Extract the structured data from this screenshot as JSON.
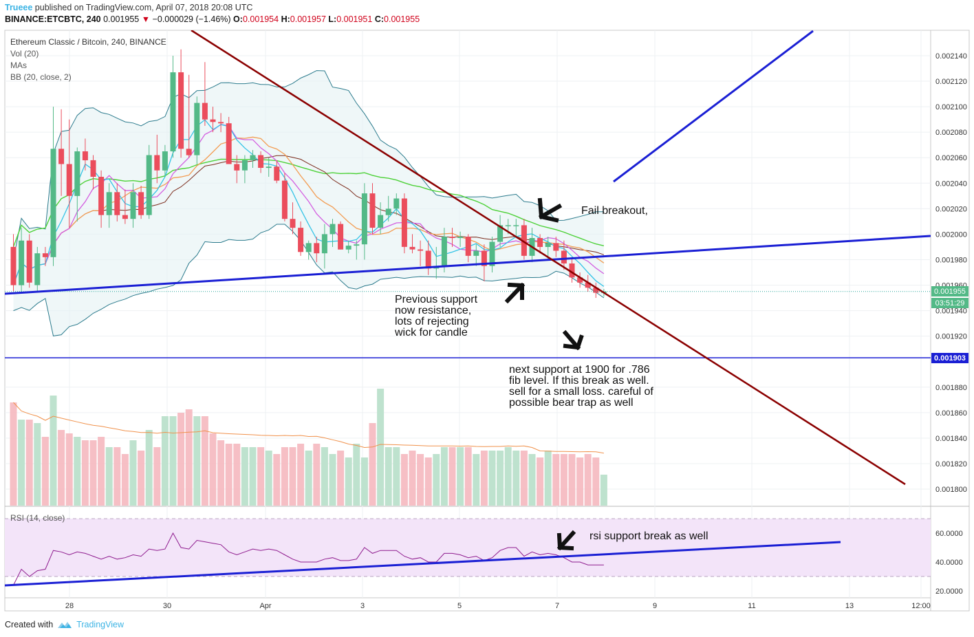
{
  "header": {
    "author": "Trueee",
    "published_text": " published on TradingView.com, April 07, 2018 20:08 UTC",
    "symbol": "BINANCE:ETCBTC, 240",
    "last": "0.001955",
    "change": "−0.000029 (−1.46%)",
    "o_label": "O:",
    "o_value": "0.001954",
    "h_label": "H:",
    "h_value": "0.001957",
    "l_label": "L:",
    "l_value": "0.001951",
    "c_label": "C:",
    "c_value": "0.001955"
  },
  "legend": {
    "pair": "Ethereum Classic / Bitcoin, 240, BINANCE",
    "vol": "Vol (20)",
    "mas": "MAs",
    "bb": "BB (20, close, 2)",
    "rsi": "RSI (14, close)"
  },
  "price_axis": [
    "0.002140",
    "0.002120",
    "0.002100",
    "0.002080",
    "0.002060",
    "0.002040",
    "0.002020",
    "0.002000",
    "0.001980",
    "0.001960",
    "0.001940",
    "0.001920",
    "0.001880",
    "0.001860",
    "0.001840",
    "0.001820",
    "0.001800"
  ],
  "price_labels": {
    "current": "0.001955",
    "countdown": "03:51:29",
    "level": "0.001903"
  },
  "rsi_axis": [
    "60.0000",
    "40.0000",
    "20.0000"
  ],
  "time_axis": [
    "28",
    "30",
    "Apr",
    "3",
    "5",
    "7",
    "9",
    "11",
    "13",
    "12:00"
  ],
  "annotations": {
    "fail": "Fail breakout,",
    "prev_support": [
      "Previous support",
      "now resistance,",
      "lots of rejecting",
      "wick for candle"
    ],
    "next_support": [
      "next support at 1900 for .786",
      "fib level. If this break as well.",
      "sell for a small loss. careful of",
      "possible bear trap as well"
    ],
    "rsi": "rsi support break as well"
  },
  "footer": {
    "created": "Created with",
    "brand": "TradingView"
  },
  "colors": {
    "up": "#53b987",
    "down": "#eb4d5c",
    "trend_blue": "#1a1fd4",
    "trend_red": "#8b0000",
    "bb": "#2a7a8c",
    "accent": "#3bb3e4"
  },
  "chart_data": {
    "type": "candlestick",
    "symbol": "ETCBTC",
    "interval": "240",
    "ylim": [
      0.00179,
      0.00215
    ],
    "candles": [
      {
        "o": 0.00199,
        "h": 0.002,
        "l": 0.001955,
        "c": 0.00196
      },
      {
        "o": 0.00196,
        "h": 0.002005,
        "l": 0.001955,
        "c": 0.001995
      },
      {
        "o": 0.001995,
        "h": 0.002,
        "l": 0.001958,
        "c": 0.001962
      },
      {
        "o": 0.00196,
        "h": 0.00199,
        "l": 0.001955,
        "c": 0.001985
      },
      {
        "o": 0.001985,
        "h": 0.00199,
        "l": 0.001975,
        "c": 0.001982
      },
      {
        "o": 0.001982,
        "h": 0.0021,
        "l": 0.001975,
        "c": 0.002067
      },
      {
        "o": 0.002067,
        "h": 0.002098,
        "l": 0.00203,
        "c": 0.002055
      },
      {
        "o": 0.002055,
        "h": 0.00209,
        "l": 0.002005,
        "c": 0.00203
      },
      {
        "o": 0.00203,
        "h": 0.002068,
        "l": 0.00201,
        "c": 0.002065
      },
      {
        "o": 0.002065,
        "h": 0.002075,
        "l": 0.00205,
        "c": 0.002058
      },
      {
        "o": 0.002058,
        "h": 0.002062,
        "l": 0.002035,
        "c": 0.002045
      },
      {
        "o": 0.002045,
        "h": 0.00205,
        "l": 0.002005,
        "c": 0.002015
      },
      {
        "o": 0.002015,
        "h": 0.00204,
        "l": 0.002005,
        "c": 0.002033
      },
      {
        "o": 0.002033,
        "h": 0.00204,
        "l": 0.00201,
        "c": 0.002015
      },
      {
        "o": 0.002015,
        "h": 0.002035,
        "l": 0.002008,
        "c": 0.002012
      },
      {
        "o": 0.002012,
        "h": 0.00204,
        "l": 0.002005,
        "c": 0.002033
      },
      {
        "o": 0.002033,
        "h": 0.002038,
        "l": 0.002012,
        "c": 0.002015
      },
      {
        "o": 0.002015,
        "h": 0.00207,
        "l": 0.002012,
        "c": 0.002062
      },
      {
        "o": 0.002062,
        "h": 0.002078,
        "l": 0.00204,
        "c": 0.00205
      },
      {
        "o": 0.00205,
        "h": 0.00207,
        "l": 0.002045,
        "c": 0.002065
      },
      {
        "o": 0.002065,
        "h": 0.00214,
        "l": 0.00206,
        "c": 0.002127
      },
      {
        "o": 0.002127,
        "h": 0.002145,
        "l": 0.00206,
        "c": 0.002067
      },
      {
        "o": 0.002067,
        "h": 0.002125,
        "l": 0.00206,
        "c": 0.002062
      },
      {
        "o": 0.002062,
        "h": 0.002108,
        "l": 0.002055,
        "c": 0.002103
      },
      {
        "o": 0.002103,
        "h": 0.002135,
        "l": 0.002085,
        "c": 0.00209
      },
      {
        "o": 0.00209,
        "h": 0.0021,
        "l": 0.00208,
        "c": 0.002088
      },
      {
        "o": 0.002088,
        "h": 0.002095,
        "l": 0.00208,
        "c": 0.002087
      },
      {
        "o": 0.002087,
        "h": 0.002092,
        "l": 0.002055,
        "c": 0.002055
      },
      {
        "o": 0.002055,
        "h": 0.002062,
        "l": 0.00204,
        "c": 0.00205
      },
      {
        "o": 0.00205,
        "h": 0.002062,
        "l": 0.00204,
        "c": 0.002058
      },
      {
        "o": 0.002058,
        "h": 0.002066,
        "l": 0.002052,
        "c": 0.002062
      },
      {
        "o": 0.002062,
        "h": 0.002065,
        "l": 0.002048,
        "c": 0.002052
      },
      {
        "o": 0.002052,
        "h": 0.00206,
        "l": 0.002045,
        "c": 0.002053
      },
      {
        "o": 0.002053,
        "h": 0.002058,
        "l": 0.00204,
        "c": 0.002042
      },
      {
        "o": 0.002042,
        "h": 0.002048,
        "l": 0.00201,
        "c": 0.002012
      },
      {
        "o": 0.002012,
        "h": 0.002025,
        "l": 0.002,
        "c": 0.002005
      },
      {
        "o": 0.002005,
        "h": 0.00201,
        "l": 0.001983,
        "c": 0.001986
      },
      {
        "o": 0.001986,
        "h": 0.001995,
        "l": 0.00198,
        "c": 0.001993
      },
      {
        "o": 0.001993,
        "h": 0.001998,
        "l": 0.001978,
        "c": 0.001985
      },
      {
        "o": 0.001985,
        "h": 0.002008,
        "l": 0.001973,
        "c": 0.002
      },
      {
        "o": 0.002,
        "h": 0.002012,
        "l": 0.00199,
        "c": 0.002008
      },
      {
        "o": 0.002008,
        "h": 0.00201,
        "l": 0.001988,
        "c": 0.001988
      },
      {
        "o": 0.001988,
        "h": 0.001995,
        "l": 0.001985,
        "c": 0.001991
      },
      {
        "o": 0.001991,
        "h": 0.001995,
        "l": 0.00198,
        "c": 0.001992
      },
      {
        "o": 0.001992,
        "h": 0.00204,
        "l": 0.00198,
        "c": 0.002032
      },
      {
        "o": 0.002032,
        "h": 0.00204,
        "l": 0.002,
        "c": 0.002005
      },
      {
        "o": 0.002005,
        "h": 0.002025,
        "l": 0.002,
        "c": 0.002015
      },
      {
        "o": 0.002015,
        "h": 0.00203,
        "l": 0.00201,
        "c": 0.00202
      },
      {
        "o": 0.00202,
        "h": 0.002032,
        "l": 0.002015,
        "c": 0.002028
      },
      {
        "o": 0.002028,
        "h": 0.002032,
        "l": 0.001985,
        "c": 0.00199
      },
      {
        "o": 0.00199,
        "h": 0.002,
        "l": 0.001985,
        "c": 0.001988
      },
      {
        "o": 0.001988,
        "h": 0.001995,
        "l": 0.001975,
        "c": 0.001987
      },
      {
        "o": 0.001987,
        "h": 0.001995,
        "l": 0.001968,
        "c": 0.001973
      },
      {
        "o": 0.001973,
        "h": 0.00199,
        "l": 0.001965,
        "c": 0.001975
      },
      {
        "o": 0.001975,
        "h": 0.002005,
        "l": 0.00197,
        "c": 0.001998
      },
      {
        "o": 0.001998,
        "h": 0.002005,
        "l": 0.00199,
        "c": 0.001997
      },
      {
        "o": 0.001997,
        "h": 0.002002,
        "l": 0.00199,
        "c": 0.001998
      },
      {
        "o": 0.001998,
        "h": 0.002,
        "l": 0.001978,
        "c": 0.001983
      },
      {
        "o": 0.001983,
        "h": 0.001992,
        "l": 0.001975,
        "c": 0.001987
      },
      {
        "o": 0.001987,
        "h": 0.001992,
        "l": 0.001963,
        "c": 0.001975
      },
      {
        "o": 0.001975,
        "h": 0.001998,
        "l": 0.00197,
        "c": 0.001994
      },
      {
        "o": 0.001994,
        "h": 0.002015,
        "l": 0.00199,
        "c": 0.002007
      },
      {
        "o": 0.002007,
        "h": 0.002012,
        "l": 0.002,
        "c": 0.002007
      },
      {
        "o": 0.002007,
        "h": 0.002012,
        "l": 0.001998,
        "c": 0.002007
      },
      {
        "o": 0.002007,
        "h": 0.002012,
        "l": 0.00198,
        "c": 0.001983
      },
      {
        "o": 0.001983,
        "h": 0.002005,
        "l": 0.001978,
        "c": 0.001997
      },
      {
        "o": 0.001997,
        "h": 0.002,
        "l": 0.001985,
        "c": 0.00199
      },
      {
        "o": 0.00199,
        "h": 0.001998,
        "l": 0.00198,
        "c": 0.001993
      },
      {
        "o": 0.001993,
        "h": 0.001998,
        "l": 0.001982,
        "c": 0.001987
      },
      {
        "o": 0.001987,
        "h": 0.001995,
        "l": 0.001972,
        "c": 0.001977
      },
      {
        "o": 0.001977,
        "h": 0.001982,
        "l": 0.001962,
        "c": 0.001966
      },
      {
        "o": 0.001966,
        "h": 0.00197,
        "l": 0.001958,
        "c": 0.001962
      },
      {
        "o": 0.001962,
        "h": 0.001968,
        "l": 0.001955,
        "c": 0.001958
      },
      {
        "o": 0.001958,
        "h": 0.001962,
        "l": 0.00195,
        "c": 0.001954
      },
      {
        "o": 0.001954,
        "h": 0.001957,
        "l": 0.001951,
        "c": 0.001955
      }
    ],
    "volume": [
      30,
      25,
      25,
      24,
      20,
      32,
      22,
      21,
      20,
      19,
      19,
      20,
      17,
      17,
      15,
      19,
      16,
      22,
      17,
      26,
      26,
      27,
      28,
      26,
      26,
      21,
      19,
      18,
      18,
      17,
      17,
      17,
      16,
      15,
      17,
      17,
      18,
      16,
      18,
      17,
      15,
      16,
      14,
      18,
      14,
      24,
      34,
      17,
      17,
      15,
      16,
      15,
      14,
      15,
      17,
      17,
      17,
      17,
      15,
      16,
      16,
      16,
      17,
      16,
      16,
      15,
      14,
      16,
      15,
      15,
      15,
      14,
      15,
      14,
      9
    ],
    "rsi": [
      24,
      35,
      30,
      34,
      35,
      48,
      47,
      45,
      47,
      46,
      44,
      42,
      44,
      42,
      43,
      45,
      44,
      49,
      48,
      49,
      60,
      50,
      49,
      55,
      54,
      53,
      52,
      47,
      45,
      47,
      49,
      48,
      49,
      48,
      45,
      42,
      40,
      40,
      40,
      42,
      43,
      41,
      41,
      42,
      50,
      46,
      48,
      48,
      48,
      44,
      42,
      43,
      40,
      40,
      46,
      46,
      45,
      43,
      44,
      41,
      43,
      48,
      50,
      50,
      44,
      47,
      45,
      46,
      45,
      43,
      40,
      40,
      38,
      38,
      38
    ],
    "lines": {
      "support_trend": "rising blue trendline under candles",
      "resistance_trend": "falling dark red trendline from top-left",
      "horizontal_level": 0.001903
    }
  }
}
